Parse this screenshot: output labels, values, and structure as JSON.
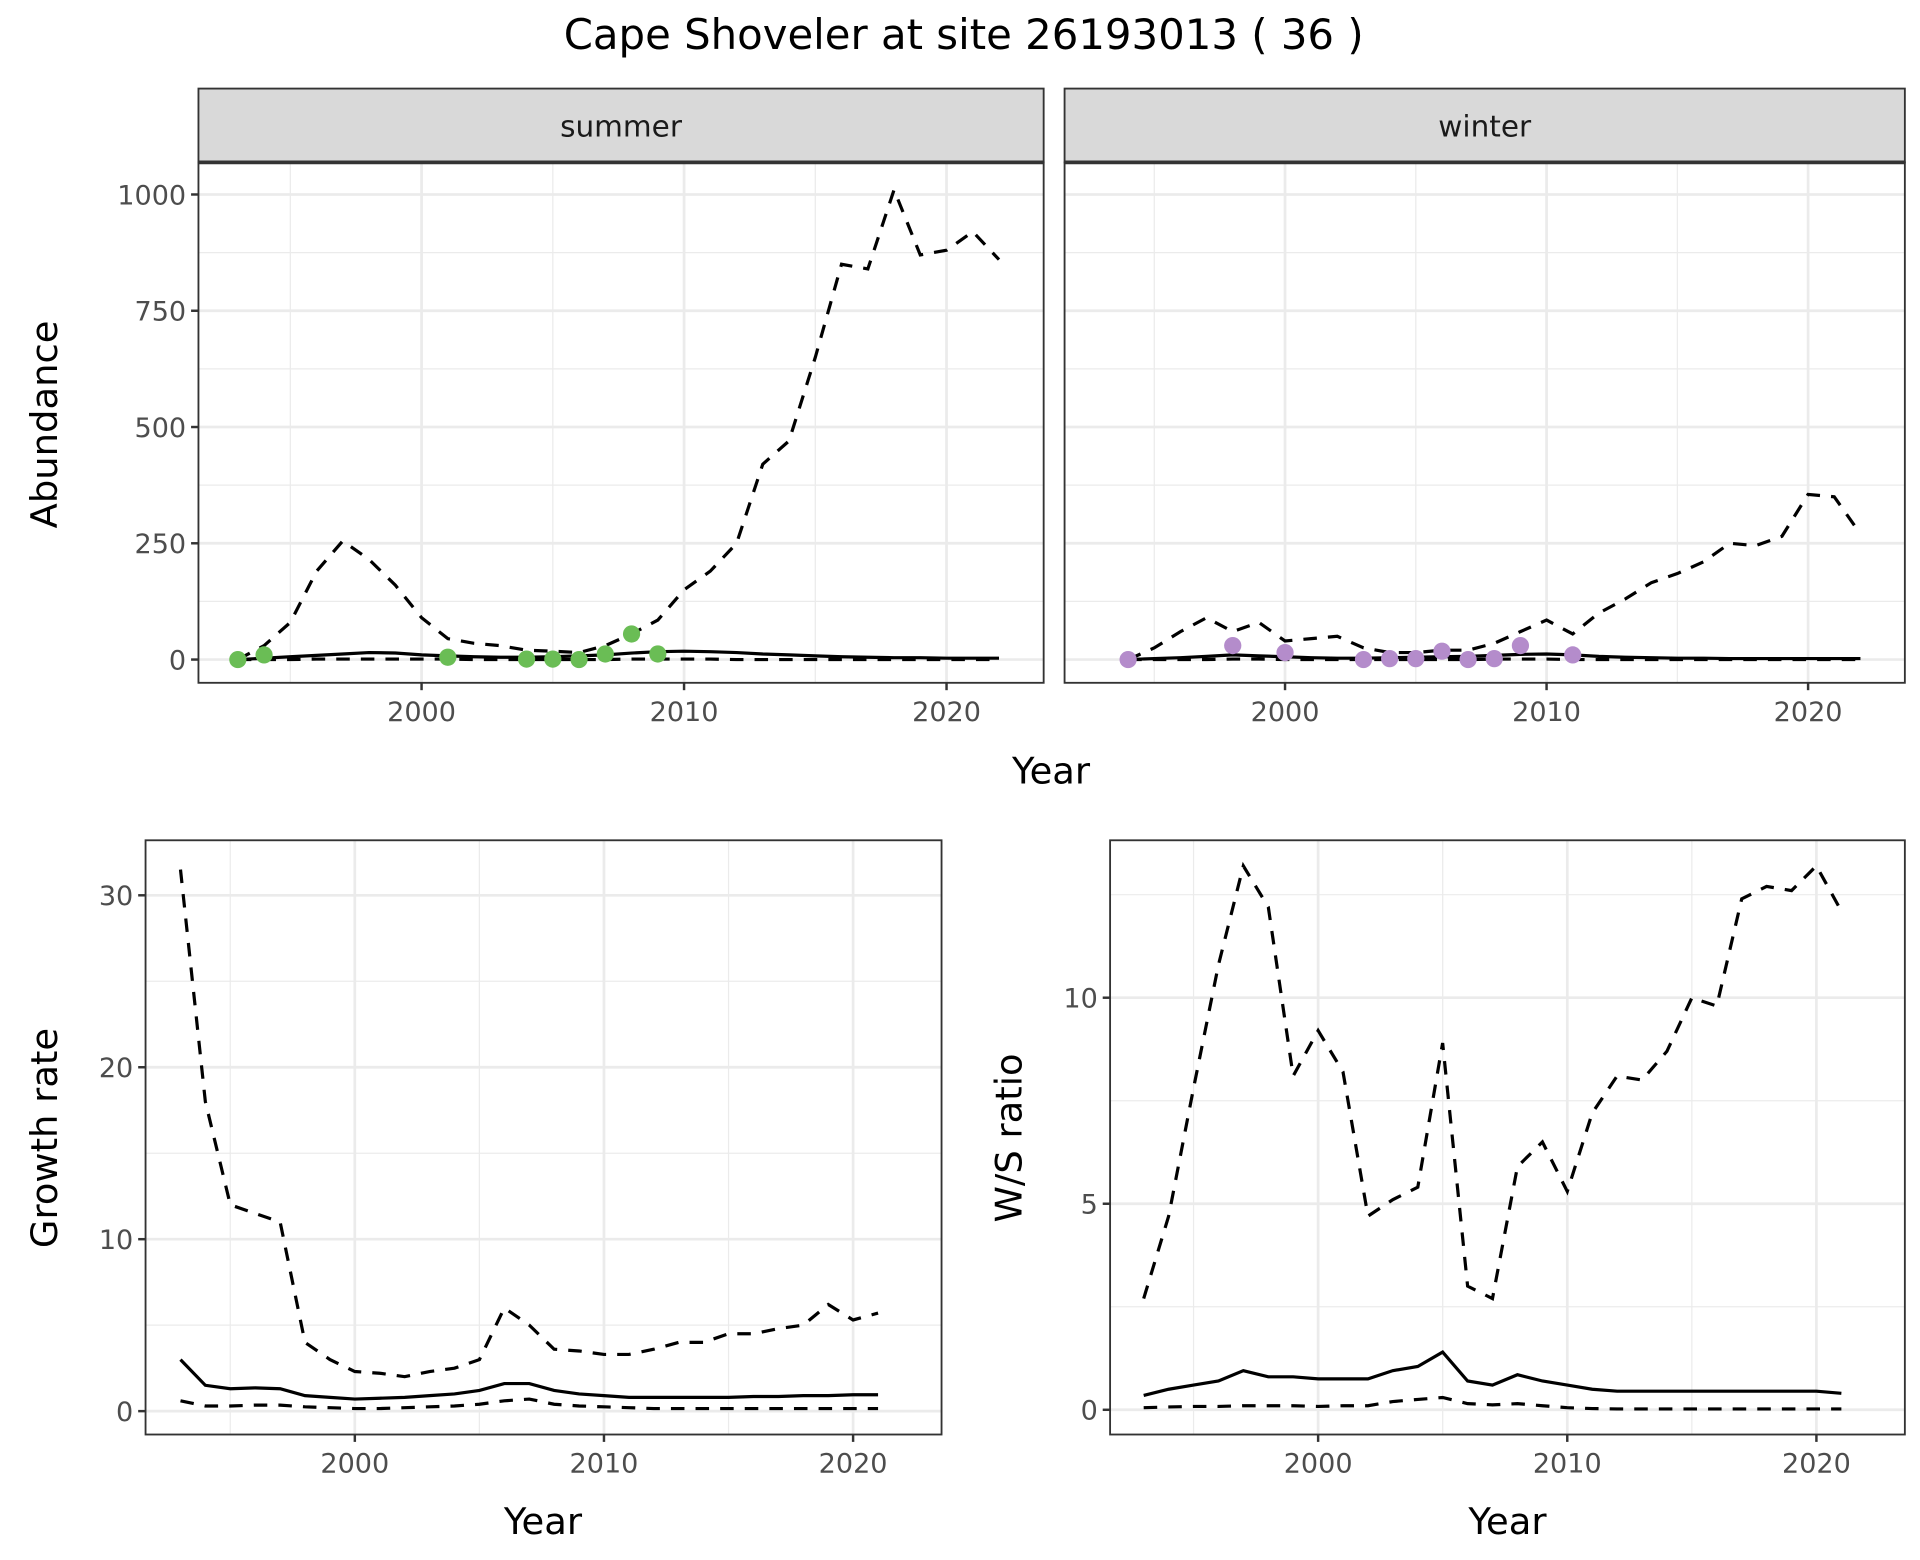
{
  "title": "Cape Shoveler at site 26193013 ( 36 )",
  "colors": {
    "summer": "#6abd55",
    "winter": "#b48ccb"
  },
  "chart_data": [
    {
      "type": "line",
      "panel": "summer",
      "strip": "summer",
      "xlabel": "Year",
      "ylabel": "Abundance",
      "xlim": [
        1991.5,
        2023.7
      ],
      "ylim": [
        -50,
        1069
      ],
      "xticks": [
        2000,
        2010,
        2020
      ],
      "yticks": [
        0,
        250,
        500,
        750,
        1000
      ],
      "x": [
        1993,
        1994,
        1995,
        1996,
        1997,
        1998,
        1999,
        2000,
        2001,
        2002,
        2003,
        2004,
        2005,
        2006,
        2007,
        2008,
        2009,
        2010,
        2011,
        2012,
        2013,
        2014,
        2015,
        2016,
        2017,
        2018,
        2019,
        2020,
        2021,
        2022
      ],
      "series": [
        {
          "name": "upper",
          "style": "dashed",
          "values": [
            0,
            30,
            80,
            190,
            255,
            215,
            160,
            90,
            45,
            35,
            30,
            20,
            18,
            15,
            30,
            55,
            85,
            150,
            190,
            250,
            420,
            470,
            650,
            850,
            840,
            1010,
            870,
            880,
            920,
            860
          ]
        },
        {
          "name": "estimate",
          "style": "solid",
          "values": [
            0,
            3,
            6,
            9,
            12,
            15,
            14,
            10,
            8,
            6,
            5,
            5,
            6,
            8,
            10,
            14,
            17,
            18,
            17,
            15,
            12,
            10,
            8,
            6,
            5,
            4,
            4,
            3,
            3,
            3
          ]
        },
        {
          "name": "lower",
          "style": "dashed",
          "values": [
            0,
            0,
            0,
            1,
            1,
            1,
            1,
            1,
            1,
            0,
            0,
            0,
            0,
            0,
            0,
            1,
            1,
            1,
            1,
            0,
            0,
            0,
            0,
            0,
            0,
            0,
            0,
            0,
            0,
            0
          ]
        }
      ],
      "points": {
        "x": [
          1993,
          1994,
          2001,
          2004,
          2005,
          2006,
          2007,
          2008,
          2009
        ],
        "y": [
          0,
          10,
          5,
          1,
          1,
          0,
          12,
          55,
          12
        ]
      }
    },
    {
      "type": "line",
      "panel": "winter",
      "strip": "winter",
      "xlabel": "",
      "ylabel": "",
      "xlim": [
        1991.57,
        2023.7
      ],
      "ylim": [
        -50,
        1069
      ],
      "xticks": [
        2000,
        2010,
        2020
      ],
      "yticks": [
        0,
        250,
        500,
        750,
        1000
      ],
      "x": [
        1994,
        1995,
        1996,
        1997,
        1998,
        1999,
        2000,
        2001,
        2002,
        2003,
        2004,
        2005,
        2006,
        2007,
        2008,
        2009,
        2010,
        2011,
        2012,
        2013,
        2014,
        2015,
        2016,
        2017,
        2018,
        2019,
        2020,
        2021,
        2022
      ],
      "series": [
        {
          "name": "upper",
          "style": "dashed",
          "values": [
            0,
            25,
            60,
            90,
            60,
            80,
            40,
            45,
            50,
            25,
            15,
            15,
            20,
            20,
            35,
            60,
            85,
            55,
            100,
            130,
            165,
            185,
            210,
            250,
            245,
            265,
            355,
            350,
            270
          ]
        },
        {
          "name": "estimate",
          "style": "solid",
          "values": [
            0,
            2,
            4,
            7,
            10,
            8,
            6,
            4,
            3,
            3,
            4,
            5,
            6,
            7,
            9,
            11,
            12,
            10,
            7,
            5,
            4,
            3,
            3,
            2,
            2,
            2,
            2,
            2,
            2
          ]
        },
        {
          "name": "lower",
          "style": "dashed",
          "values": [
            0,
            0,
            0,
            0,
            1,
            1,
            0,
            0,
            0,
            0,
            0,
            0,
            0,
            0,
            1,
            1,
            1,
            0,
            0,
            0,
            0,
            0,
            0,
            0,
            0,
            0,
            0,
            0,
            0
          ]
        }
      ],
      "points": {
        "x": [
          1994,
          1998,
          2000,
          2003,
          2004,
          2005,
          2006,
          2007,
          2008,
          2009,
          2011
        ],
        "y": [
          0,
          30,
          15,
          0,
          2,
          2,
          18,
          0,
          2,
          30,
          10
        ]
      }
    },
    {
      "type": "line",
      "panel": "growth",
      "xlabel": "Year",
      "ylabel": "Growth rate",
      "xlim": [
        1991.6,
        2023.55
      ],
      "ylim": [
        -1.36,
        33.2
      ],
      "xticks": [
        2000,
        2010,
        2020
      ],
      "yticks": [
        0,
        10,
        20,
        30
      ],
      "x": [
        1993,
        1994,
        1995,
        1996,
        1997,
        1998,
        1999,
        2000,
        2001,
        2002,
        2003,
        2004,
        2005,
        2006,
        2007,
        2008,
        2009,
        2010,
        2011,
        2012,
        2013,
        2014,
        2015,
        2016,
        2017,
        2018,
        2019,
        2020,
        2021
      ],
      "series": [
        {
          "name": "upper",
          "style": "dashed",
          "values": [
            31.5,
            18,
            12,
            11.5,
            11,
            4,
            3,
            2.3,
            2.2,
            2,
            2.3,
            2.5,
            3,
            6,
            5,
            3.6,
            3.5,
            3.3,
            3.3,
            3.6,
            4,
            4,
            4.5,
            4.5,
            4.8,
            5,
            6.2,
            5.3,
            5.7
          ]
        },
        {
          "name": "estimate",
          "style": "solid",
          "values": [
            3,
            1.5,
            1.3,
            1.35,
            1.3,
            0.9,
            0.8,
            0.7,
            0.75,
            0.8,
            0.9,
            1,
            1.2,
            1.6,
            1.6,
            1.2,
            1,
            0.9,
            0.8,
            0.8,
            0.8,
            0.8,
            0.8,
            0.85,
            0.85,
            0.9,
            0.9,
            0.95,
            0.95
          ]
        },
        {
          "name": "lower",
          "style": "dashed",
          "values": [
            0.6,
            0.3,
            0.3,
            0.35,
            0.35,
            0.25,
            0.2,
            0.15,
            0.15,
            0.2,
            0.25,
            0.3,
            0.4,
            0.6,
            0.7,
            0.4,
            0.3,
            0.25,
            0.2,
            0.15,
            0.15,
            0.15,
            0.15,
            0.15,
            0.15,
            0.15,
            0.15,
            0.15,
            0.15
          ]
        }
      ]
    },
    {
      "type": "line",
      "panel": "ratio",
      "xlabel": "Year",
      "ylabel": "W/S ratio",
      "xlim": [
        1991.65,
        2023.55
      ],
      "ylim": [
        -0.6,
        13.82
      ],
      "xticks": [
        2000,
        2010,
        2020
      ],
      "yticks": [
        0,
        5,
        10
      ],
      "x": [
        1993,
        1994,
        1995,
        1996,
        1997,
        1998,
        1999,
        2000,
        2001,
        2002,
        2003,
        2004,
        2005,
        2006,
        2007,
        2008,
        2009,
        2010,
        2011,
        2012,
        2013,
        2014,
        2015,
        2016,
        2017,
        2018,
        2019,
        2020,
        2021
      ],
      "series": [
        {
          "name": "upper",
          "style": "dashed",
          "values": [
            2.7,
            4.7,
            7.8,
            10.8,
            13.2,
            12.2,
            8.1,
            9.2,
            8.2,
            4.7,
            5.1,
            5.4,
            8.9,
            3,
            2.7,
            5.9,
            6.5,
            5.3,
            7.2,
            8.1,
            8,
            8.7,
            10,
            9.8,
            12.4,
            12.7,
            12.6,
            13.2,
            12.1
          ]
        },
        {
          "name": "estimate",
          "style": "solid",
          "values": [
            0.35,
            0.5,
            0.6,
            0.7,
            0.95,
            0.8,
            0.8,
            0.75,
            0.75,
            0.75,
            0.95,
            1.05,
            1.4,
            0.7,
            0.6,
            0.85,
            0.7,
            0.6,
            0.5,
            0.45,
            0.45,
            0.45,
            0.45,
            0.45,
            0.45,
            0.45,
            0.45,
            0.45,
            0.4
          ]
        },
        {
          "name": "lower",
          "style": "dashed",
          "values": [
            0.05,
            0.07,
            0.08,
            0.08,
            0.1,
            0.1,
            0.1,
            0.08,
            0.1,
            0.1,
            0.2,
            0.25,
            0.3,
            0.15,
            0.12,
            0.15,
            0.1,
            0.05,
            0.03,
            0.02,
            0.02,
            0.02,
            0.02,
            0.02,
            0.02,
            0.02,
            0.02,
            0.02,
            0.02
          ]
        }
      ]
    }
  ]
}
